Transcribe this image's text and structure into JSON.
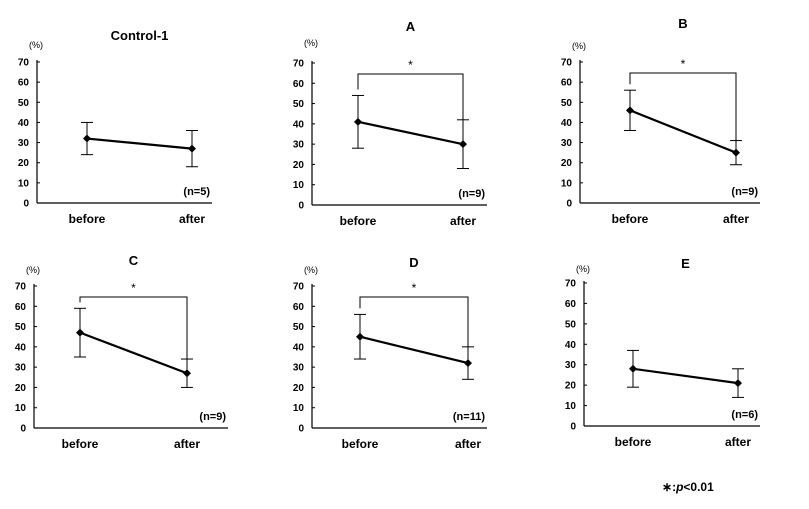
{
  "chart_data": [
    {
      "type": "line",
      "title": "Control-1",
      "y_unit": "(%)",
      "categories": [
        "before",
        "after"
      ],
      "values": [
        32,
        27
      ],
      "error": [
        8,
        9
      ],
      "ylim": [
        0,
        70
      ],
      "yticks": [
        0,
        10,
        20,
        30,
        40,
        50,
        60,
        70
      ],
      "n_label": "(n=5)",
      "significance": "",
      "grid": false
    },
    {
      "type": "line",
      "title": "A",
      "y_unit": "(%)",
      "categories": [
        "before",
        "after"
      ],
      "values": [
        41,
        30
      ],
      "error": [
        13,
        12
      ],
      "ylim": [
        0,
        70
      ],
      "yticks": [
        0,
        10,
        20,
        30,
        40,
        50,
        60,
        70
      ],
      "n_label": "(n=9)",
      "significance": "*",
      "grid": false
    },
    {
      "type": "line",
      "title": "B",
      "y_unit": "(%)",
      "categories": [
        "before",
        "after"
      ],
      "values": [
        46,
        25
      ],
      "error": [
        10,
        6
      ],
      "ylim": [
        0,
        70
      ],
      "yticks": [
        0,
        10,
        20,
        30,
        40,
        50,
        60,
        70
      ],
      "n_label": "(n=9)",
      "significance": "*",
      "grid": false
    },
    {
      "type": "line",
      "title": "C",
      "y_unit": "(%)",
      "categories": [
        "before",
        "after"
      ],
      "values": [
        47,
        27
      ],
      "error": [
        12,
        7
      ],
      "ylim": [
        0,
        70
      ],
      "yticks": [
        0,
        10,
        20,
        30,
        40,
        50,
        60,
        70
      ],
      "n_label": "(n=9)",
      "significance": "*",
      "grid": false
    },
    {
      "type": "line",
      "title": "D",
      "y_unit": "(%)",
      "categories": [
        "before",
        "after"
      ],
      "values": [
        45,
        32
      ],
      "error": [
        11,
        8
      ],
      "ylim": [
        0,
        70
      ],
      "yticks": [
        0,
        10,
        20,
        30,
        40,
        50,
        60,
        70
      ],
      "n_label": "(n=11)",
      "significance": "*",
      "grid": false
    },
    {
      "type": "line",
      "title": "E",
      "y_unit": "(%)",
      "categories": [
        "before",
        "after"
      ],
      "values": [
        28,
        21
      ],
      "error": [
        9,
        7
      ],
      "ylim": [
        0,
        70
      ],
      "yticks": [
        0,
        10,
        20,
        30,
        40,
        50,
        60,
        70
      ],
      "n_label": "(n=6)",
      "significance": "",
      "grid": false
    }
  ],
  "footnote": {
    "symbol": "∗",
    "separator": ":",
    "variable": "p",
    "condition": "<0.01"
  },
  "colors": {
    "line": "#000000",
    "background": "#ffffff"
  }
}
